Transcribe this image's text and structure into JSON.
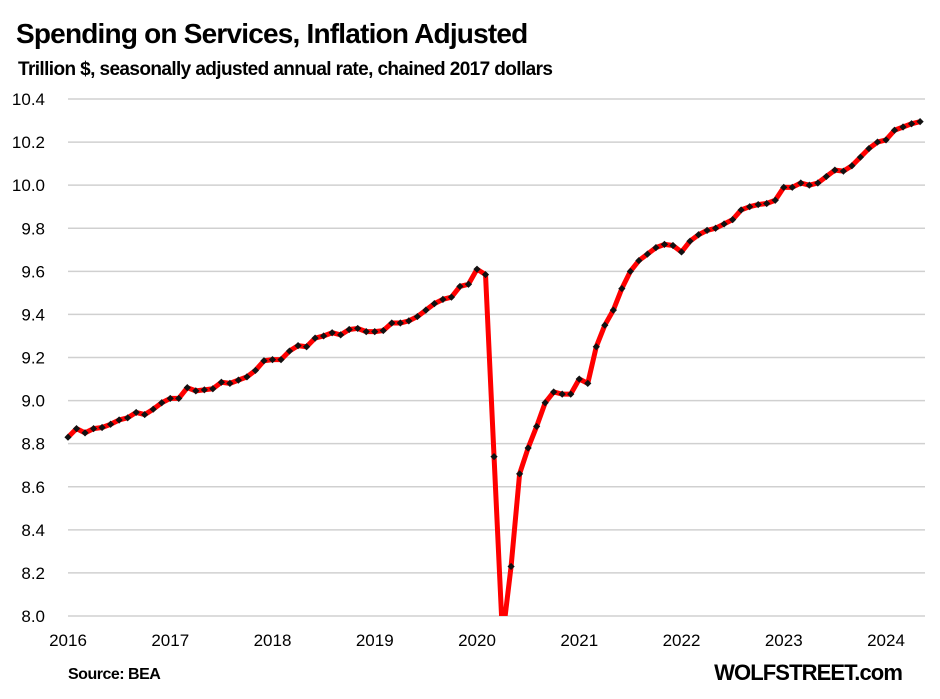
{
  "chart_data": {
    "type": "line",
    "title": "Spending on Services, Inflation Adjusted",
    "subtitle": "Trillion $, seasonally adjusted annual rate, chained 2017 dollars",
    "xlabel": "",
    "ylabel": "",
    "ylim": [
      8.0,
      10.4
    ],
    "yticks": [
      "10.4",
      "10.2",
      "10.0",
      "9.8",
      "9.6",
      "9.4",
      "9.2",
      "9.0",
      "8.8",
      "8.6",
      "8.4",
      "8.2",
      "8.0"
    ],
    "ytick_values": [
      10.4,
      10.2,
      10.0,
      9.8,
      9.6,
      9.4,
      9.2,
      9.0,
      8.8,
      8.6,
      8.4,
      8.2,
      8.0
    ],
    "xticks": [
      "2016",
      "2017",
      "2018",
      "2019",
      "2020",
      "2021",
      "2022",
      "2023",
      "2024"
    ],
    "xtick_values": [
      2016,
      2017,
      2018,
      2019,
      2020,
      2021,
      2022,
      2023,
      2024
    ],
    "xlim": [
      2016,
      2024.42
    ],
    "grid": true,
    "legend": "none",
    "series": [
      {
        "name": "Spending on Services (real)",
        "color": "#ff0000",
        "marker_color": "#111111",
        "start": "2016-01",
        "frequency": "monthly",
        "values": [
          8.83,
          8.87,
          8.85,
          8.87,
          8.875,
          8.89,
          8.91,
          8.92,
          8.945,
          8.935,
          8.96,
          8.99,
          9.01,
          9.01,
          9.06,
          9.045,
          9.05,
          9.055,
          9.085,
          9.08,
          9.095,
          9.11,
          9.14,
          9.185,
          9.19,
          9.19,
          9.23,
          9.255,
          9.25,
          9.29,
          9.3,
          9.315,
          9.305,
          9.33,
          9.335,
          9.32,
          9.32,
          9.325,
          9.36,
          9.36,
          9.37,
          9.39,
          9.42,
          9.45,
          9.47,
          9.48,
          9.53,
          9.54,
          9.61,
          9.585,
          8.74,
          7.9,
          8.23,
          8.66,
          8.78,
          8.88,
          8.99,
          9.04,
          9.03,
          9.03,
          9.1,
          9.08,
          9.25,
          9.35,
          9.42,
          9.52,
          9.6,
          9.65,
          9.68,
          9.71,
          9.725,
          9.72,
          9.69,
          9.74,
          9.77,
          9.79,
          9.8,
          9.82,
          9.84,
          9.885,
          9.9,
          9.91,
          9.915,
          9.93,
          9.99,
          9.99,
          10.01,
          10.0,
          10.01,
          10.04,
          10.07,
          10.065,
          10.09,
          10.13,
          10.17,
          10.2,
          10.21,
          10.255,
          10.27,
          10.285,
          10.295
        ]
      }
    ]
  },
  "footer": {
    "source": "Source: BEA",
    "brand": "WOLFSTREET.com"
  }
}
